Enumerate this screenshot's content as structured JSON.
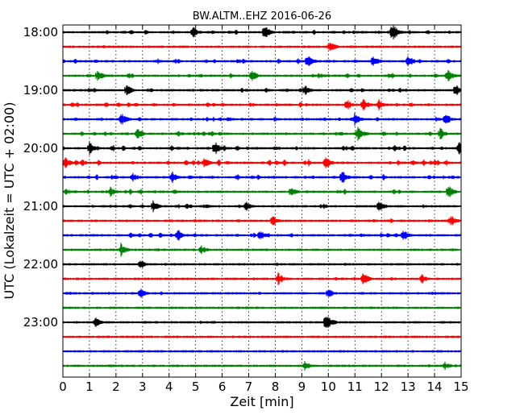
{
  "chart_data": {
    "type": "line",
    "title": "BW.ALTM..EHZ 2016-06-26",
    "xlabel": "Zeit  [min]",
    "ylabel": "UTC (Lokalzeit = UTC + 02:00)",
    "xlim": [
      0,
      15
    ],
    "x_ticks": [
      "0",
      "1",
      "2",
      "3",
      "4",
      "5",
      "6",
      "7",
      "8",
      "9",
      "10",
      "11",
      "12",
      "13",
      "14",
      "15"
    ],
    "y_ticks": [
      "18:00",
      "19:00",
      "20:00",
      "21:00",
      "22:00",
      "23:00"
    ],
    "grid": true,
    "trace_colors": [
      "#000000",
      "#ff0000",
      "#0000ff",
      "#008000"
    ],
    "series": [
      {
        "start": "18:00",
        "activity": 0.55,
        "events": [
          [
            4.9,
            0.9
          ],
          [
            7.6,
            1.3
          ],
          [
            12.4,
            2.2
          ]
        ]
      },
      {
        "start": "18:15",
        "activity": 0.05,
        "events": [
          [
            10.05,
            1.3
          ]
        ]
      },
      {
        "start": "18:30",
        "activity": 0.6,
        "events": [
          [
            9.2,
            1.3
          ],
          [
            11.7,
            1.2
          ],
          [
            13.0,
            1.2
          ]
        ]
      },
      {
        "start": "18:45",
        "activity": 0.65,
        "events": [
          [
            1.3,
            1.0
          ],
          [
            7.1,
            1.0
          ],
          [
            14.5,
            1.0
          ]
        ]
      },
      {
        "start": "19:00",
        "activity": 0.55,
        "events": [
          [
            2.4,
            1.0
          ],
          [
            9.1,
            0.9
          ],
          [
            14.8,
            1.0
          ]
        ]
      },
      {
        "start": "19:15",
        "activity": 0.6,
        "events": [
          [
            10.7,
            1.0
          ],
          [
            11.3,
            1.2
          ],
          [
            11.9,
            0.9
          ]
        ]
      },
      {
        "start": "19:30",
        "activity": 0.55,
        "events": [
          [
            2.2,
            1.3
          ],
          [
            11.0,
            1.0
          ],
          [
            14.4,
            1.1
          ]
        ]
      },
      {
        "start": "19:45",
        "activity": 0.7,
        "events": [
          [
            2.8,
            0.9
          ],
          [
            11.1,
            1.4
          ],
          [
            14.2,
            1.0
          ]
        ]
      },
      {
        "start": "20:00",
        "activity": 0.85,
        "events": [
          [
            1.0,
            1.2
          ],
          [
            5.7,
            1.3
          ],
          [
            14.9,
            1.4
          ]
        ]
      },
      {
        "start": "20:15",
        "activity": 0.9,
        "events": [
          [
            0.1,
            0.9
          ],
          [
            5.3,
            0.9
          ],
          [
            9.9,
            1.0
          ]
        ]
      },
      {
        "start": "20:30",
        "activity": 0.7,
        "events": [
          [
            2.6,
            0.9
          ],
          [
            4.1,
            1.0
          ],
          [
            10.5,
            1.2
          ]
        ]
      },
      {
        "start": "20:45",
        "activity": 0.6,
        "events": [
          [
            1.8,
            0.8
          ],
          [
            8.6,
            0.8
          ],
          [
            14.5,
            1.3
          ]
        ]
      },
      {
        "start": "21:00",
        "activity": 0.55,
        "events": [
          [
            3.4,
            0.9
          ],
          [
            6.9,
            0.9
          ],
          [
            11.9,
            1.0
          ]
        ]
      },
      {
        "start": "21:15",
        "activity": 0.35,
        "events": [
          [
            7.9,
            0.8
          ],
          [
            14.6,
            1.0
          ]
        ]
      },
      {
        "start": "21:30",
        "activity": 0.55,
        "events": [
          [
            4.3,
            1.2
          ],
          [
            7.4,
            0.9
          ],
          [
            12.8,
            0.9
          ]
        ]
      },
      {
        "start": "21:45",
        "activity": 0.15,
        "events": [
          [
            2.2,
            1.2
          ],
          [
            5.2,
            0.7
          ]
        ]
      },
      {
        "start": "22:00",
        "activity": 0.1,
        "events": [
          [
            2.9,
            0.6
          ]
        ]
      },
      {
        "start": "22:15",
        "activity": 0.2,
        "events": [
          [
            8.1,
            1.0
          ],
          [
            11.3,
            1.2
          ],
          [
            13.5,
            0.7
          ]
        ]
      },
      {
        "start": "22:30",
        "activity": 0.3,
        "events": [
          [
            2.9,
            0.7
          ],
          [
            10.0,
            0.8
          ]
        ]
      },
      {
        "start": "22:45",
        "activity": 0.05,
        "events": []
      },
      {
        "start": "23:00",
        "activity": 0.2,
        "events": [
          [
            1.2,
            0.8
          ],
          [
            9.9,
            2.3
          ]
        ]
      },
      {
        "start": "23:15",
        "activity": 0.05,
        "events": []
      },
      {
        "start": "23:30",
        "activity": 0.05,
        "events": []
      },
      {
        "start": "23:45",
        "activity": 0.15,
        "events": [
          [
            9.1,
            0.8
          ],
          [
            14.4,
            0.6
          ]
        ]
      }
    ]
  }
}
